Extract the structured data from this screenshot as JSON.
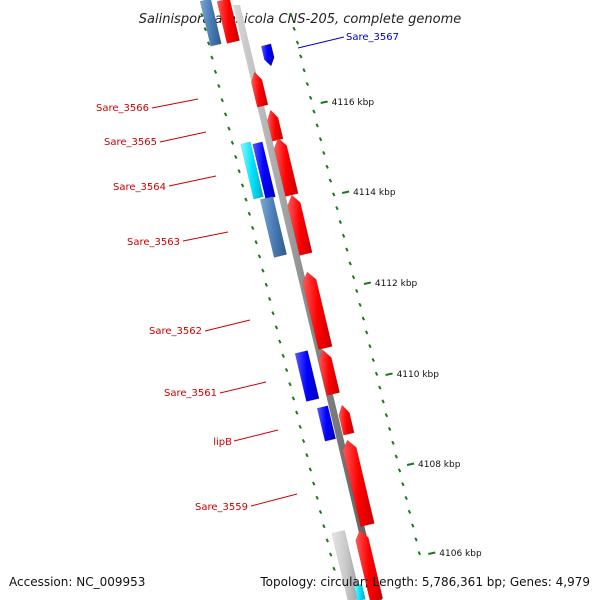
{
  "title": "Salinispora arenicola CNS-205, complete genome",
  "accession": "Accession: NC_009953",
  "summary": "Topology: circular; Length: 5,786,361 bp; Genes: 4,979",
  "colors": {
    "forward_gene": "#ff0000",
    "reverse_gene": "#0000ff",
    "steel_gene": "#4a7db5",
    "cyan_gene": "#00e5ff",
    "gray_gene": "#c8c8c8",
    "backbone": "#8c8c8c",
    "tick": "#1a7a1a",
    "label_red": "#cc0000",
    "label_blue": "#0000cc"
  },
  "ticks": [
    "4116 kbp",
    "4114 kbp",
    "4112 kbp",
    "4110 kbp",
    "4108 kbp",
    "4106 kbp"
  ],
  "gene_labels": [
    {
      "text": "Sare_3567",
      "color": "blue"
    },
    {
      "text": "Sare_3566",
      "color": "red"
    },
    {
      "text": "Sare_3565",
      "color": "red"
    },
    {
      "text": "Sare_3564",
      "color": "red"
    },
    {
      "text": "Sare_3563",
      "color": "red"
    },
    {
      "text": "Sare_3562",
      "color": "red"
    },
    {
      "text": "Sare_3561",
      "color": "red"
    },
    {
      "text": "lipB",
      "color": "red"
    },
    {
      "text": "Sare_3559",
      "color": "red"
    }
  ]
}
